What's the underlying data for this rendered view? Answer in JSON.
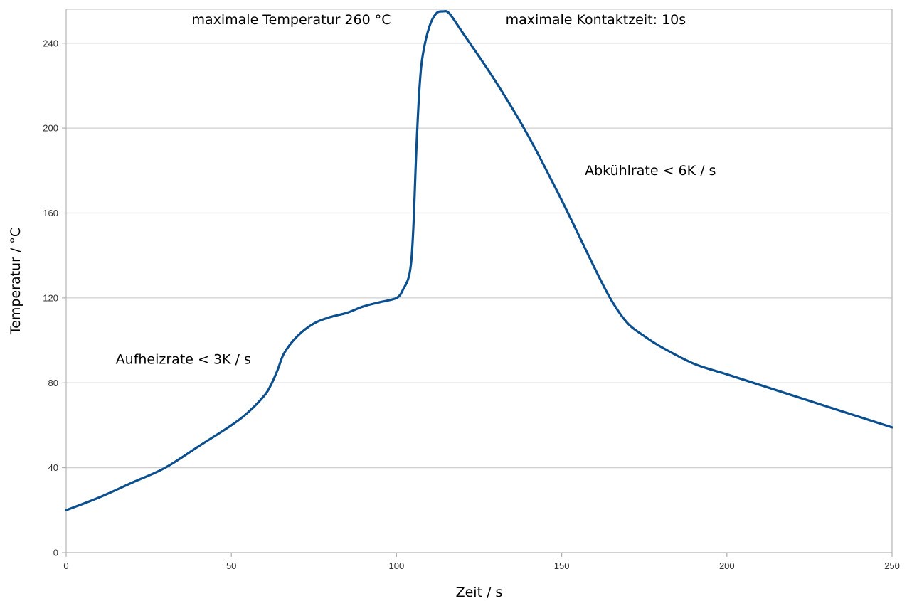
{
  "chart_data": {
    "type": "line",
    "title": "",
    "xlabel": "Zeit / s",
    "ylabel": "Temperatur / °C",
    "xlim": [
      0,
      250
    ],
    "ylim": [
      0,
      256
    ],
    "x_ticks": [
      0,
      50,
      100,
      150,
      200,
      250
    ],
    "y_ticks": [
      0,
      40,
      80,
      120,
      160,
      200,
      240
    ],
    "grid": "horizontal",
    "legend": "none",
    "series": [
      {
        "color": "#0b4f8f",
        "x": [
          0,
          10,
          20,
          30,
          40,
          50,
          55,
          60,
          62,
          64,
          66,
          70,
          75,
          80,
          85,
          90,
          95,
          100,
          102,
          104,
          105,
          106,
          107,
          108,
          110,
          112,
          114,
          116,
          120,
          130,
          140,
          150,
          160,
          165,
          170,
          175,
          180,
          190,
          200,
          210,
          220,
          230,
          240,
          250
        ],
        "y": [
          20,
          26,
          33,
          40,
          50,
          60,
          66,
          74,
          79,
          86,
          94,
          102,
          108,
          111,
          113,
          116,
          118,
          120,
          124,
          132,
          150,
          190,
          220,
          235,
          248,
          254,
          255,
          254,
          245,
          222,
          196,
          166,
          134,
          119,
          108,
          102,
          97,
          89,
          84,
          79,
          74,
          69,
          64,
          59
        ]
      }
    ],
    "annotations": [
      {
        "text": "maximale Temperatur 260 °C",
        "x": 38,
        "y": 249
      },
      {
        "text": "maximale Kontaktzeit: 10s",
        "x": 133,
        "y": 249
      },
      {
        "text": "Abkühlrate < 6K / s",
        "x": 157,
        "y": 178
      },
      {
        "text": "Aufheizrate < 3K / s",
        "x": 15,
        "y": 89
      }
    ]
  }
}
